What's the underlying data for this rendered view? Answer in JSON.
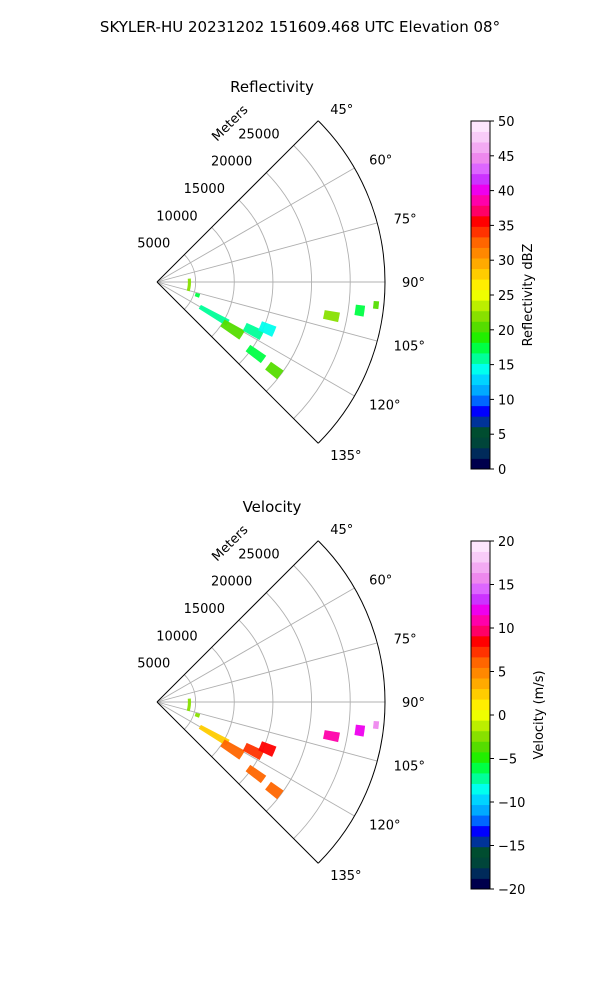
{
  "figure": {
    "suptitle": "SKYLER-HU  20231202  151609.468 UTC Elevation 08°"
  },
  "colors": {
    "grid": "#b0b0b0",
    "spine": "#000000",
    "background": "#ffffff"
  },
  "chart_data": [
    {
      "type": "heatmap",
      "subtype": "radar-sector-ppi",
      "title": "Reflectivity",
      "azimuth_range_deg": [
        45,
        135
      ],
      "azimuth_ticks": [
        {
          "value": 45,
          "label": "45°"
        },
        {
          "value": 60,
          "label": "60°"
        },
        {
          "value": 75,
          "label": "75°"
        },
        {
          "value": 90,
          "label": "90°"
        },
        {
          "value": 105,
          "label": "105°"
        },
        {
          "value": 120,
          "label": "120°"
        },
        {
          "value": 135,
          "label": "135°"
        }
      ],
      "range_ticks": [
        {
          "value": 5000,
          "label": "5000"
        },
        {
          "value": 10000,
          "label": "10000"
        },
        {
          "value": 15000,
          "label": "15000"
        },
        {
          "value": 20000,
          "label": "20000"
        },
        {
          "value": 25000,
          "label": "25000"
        }
      ],
      "range_label": "Meters",
      "range_max_m": 29500,
      "grid": true,
      "colorbar": {
        "label": "Reflectivity dBZ",
        "range": [
          0,
          50
        ],
        "ticks": [
          {
            "value": 0,
            "label": "0"
          },
          {
            "value": 5,
            "label": "5"
          },
          {
            "value": 10,
            "label": "10"
          },
          {
            "value": 15,
            "label": "15"
          },
          {
            "value": 20,
            "label": "20"
          },
          {
            "value": 25,
            "label": "25"
          },
          {
            "value": 30,
            "label": "30"
          },
          {
            "value": 35,
            "label": "35"
          },
          {
            "value": 40,
            "label": "40"
          },
          {
            "value": 45,
            "label": "45"
          },
          {
            "value": 50,
            "label": "50"
          }
        ],
        "colors": [
          "#00004c",
          "#002a5a",
          "#00453a",
          "#004d30",
          "#003399",
          "#0000ff",
          "#0066ff",
          "#00aaff",
          "#00d4ff",
          "#00ffee",
          "#00ff99",
          "#00ff44",
          "#22ee00",
          "#55dd00",
          "#88e000",
          "#bbee00",
          "#eeff00",
          "#ffee00",
          "#ffcc00",
          "#ffaa00",
          "#ff8800",
          "#ff6600",
          "#ff3300",
          "#ff0000",
          "#ff0066",
          "#ff00aa",
          "#ee00ee",
          "#cc33ff",
          "#dd66ff",
          "#ee88ee",
          "#f3aaf3",
          "#f8ccf8",
          "#fde6fd"
        ]
      },
      "echoes": [
        {
          "az": 95,
          "r": 4200,
          "daz": 22,
          "dr": 400,
          "value": 22
        },
        {
          "az": 108,
          "r": 5500,
          "daz": 5,
          "dr": 600,
          "value": 17
        },
        {
          "az": 120,
          "r": 8500,
          "daz": 5,
          "dr": 4200,
          "value": 16
        },
        {
          "az": 122,
          "r": 11500,
          "daz": 6,
          "dr": 3000,
          "value": 21
        },
        {
          "az": 117,
          "r": 14000,
          "daz": 5,
          "dr": 2500,
          "value": 16
        },
        {
          "az": 113,
          "r": 15500,
          "daz": 5,
          "dr": 2000,
          "value": 15
        },
        {
          "az": 126,
          "r": 15800,
          "daz": 4,
          "dr": 2500,
          "value": 18
        },
        {
          "az": 127,
          "r": 19000,
          "daz": 4,
          "dr": 2000,
          "value": 20
        },
        {
          "az": 101,
          "r": 23000,
          "daz": 3,
          "dr": 2000,
          "value": 22
        },
        {
          "az": 98,
          "r": 26500,
          "daz": 3,
          "dr": 1200,
          "value": 18
        },
        {
          "az": 96,
          "r": 28500,
          "daz": 2,
          "dr": 700,
          "value": 21
        }
      ]
    },
    {
      "type": "heatmap",
      "subtype": "radar-sector-ppi",
      "title": "Velocity",
      "azimuth_range_deg": [
        45,
        135
      ],
      "azimuth_ticks": [
        {
          "value": 45,
          "label": "45°"
        },
        {
          "value": 60,
          "label": "60°"
        },
        {
          "value": 75,
          "label": "75°"
        },
        {
          "value": 90,
          "label": "90°"
        },
        {
          "value": 105,
          "label": "105°"
        },
        {
          "value": 120,
          "label": "120°"
        },
        {
          "value": 135,
          "label": "135°"
        }
      ],
      "range_ticks": [
        {
          "value": 5000,
          "label": "5000"
        },
        {
          "value": 10000,
          "label": "10000"
        },
        {
          "value": 15000,
          "label": "15000"
        },
        {
          "value": 20000,
          "label": "20000"
        },
        {
          "value": 25000,
          "label": "25000"
        }
      ],
      "range_label": "Meters",
      "range_max_m": 29500,
      "grid": true,
      "colorbar": {
        "label": "Velocity (m/s)",
        "range": [
          -20,
          20
        ],
        "ticks": [
          {
            "value": -20,
            "label": "−20"
          },
          {
            "value": -15,
            "label": "−15"
          },
          {
            "value": -10,
            "label": "−10"
          },
          {
            "value": -5,
            "label": "−5"
          },
          {
            "value": 0,
            "label": "0"
          },
          {
            "value": 5,
            "label": "5"
          },
          {
            "value": 10,
            "label": "10"
          },
          {
            "value": 15,
            "label": "15"
          },
          {
            "value": 20,
            "label": "20"
          }
        ],
        "colors": [
          "#00004c",
          "#002a5a",
          "#00453a",
          "#004d30",
          "#003399",
          "#0000ff",
          "#0066ff",
          "#00aaff",
          "#00d4ff",
          "#00ffee",
          "#00ff99",
          "#00ff44",
          "#22ee00",
          "#55dd00",
          "#88e000",
          "#bbee00",
          "#eeff00",
          "#ffee00",
          "#ffcc00",
          "#ffaa00",
          "#ff8800",
          "#ff6600",
          "#ff3300",
          "#ff0000",
          "#ff0066",
          "#ff00aa",
          "#ee00ee",
          "#cc33ff",
          "#dd66ff",
          "#ee88ee",
          "#f3aaf3",
          "#f8ccf8",
          "#fde6fd"
        ]
      },
      "echoes": [
        {
          "az": 95,
          "r": 4200,
          "daz": 22,
          "dr": 400,
          "value": -2
        },
        {
          "az": 108,
          "r": 5500,
          "daz": 5,
          "dr": 600,
          "value": -3
        },
        {
          "az": 120,
          "r": 8500,
          "daz": 5,
          "dr": 4200,
          "value": 2
        },
        {
          "az": 122,
          "r": 11500,
          "daz": 6,
          "dr": 3000,
          "value": 6
        },
        {
          "az": 117,
          "r": 14000,
          "daz": 5,
          "dr": 2500,
          "value": 7
        },
        {
          "az": 113,
          "r": 15500,
          "daz": 5,
          "dr": 2000,
          "value": 9
        },
        {
          "az": 126,
          "r": 15800,
          "daz": 4,
          "dr": 2500,
          "value": 6
        },
        {
          "az": 127,
          "r": 19000,
          "daz": 4,
          "dr": 2000,
          "value": 6
        },
        {
          "az": 101,
          "r": 23000,
          "daz": 3,
          "dr": 2000,
          "value": 11
        },
        {
          "az": 98,
          "r": 26500,
          "daz": 3,
          "dr": 1200,
          "value": 12
        },
        {
          "az": 96,
          "r": 28500,
          "daz": 2,
          "dr": 700,
          "value": 16
        }
      ]
    }
  ]
}
